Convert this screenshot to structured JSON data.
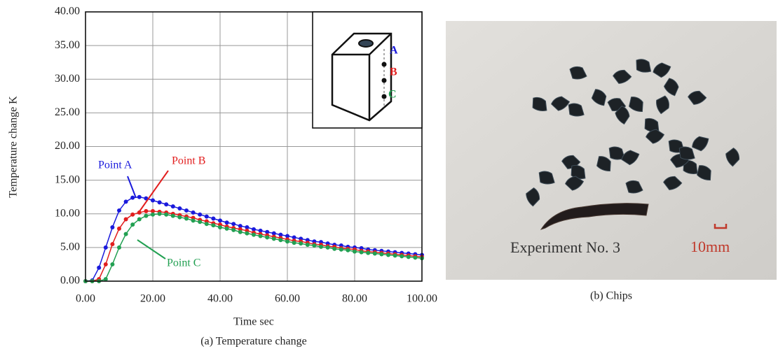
{
  "chart_data": {
    "type": "line",
    "y_label": "Temperature change K",
    "x_label": "Time sec",
    "caption": "(a) Temperature change",
    "x": [
      0,
      2,
      4,
      6,
      8,
      10,
      12,
      14,
      16,
      18,
      20,
      22,
      24,
      26,
      28,
      30,
      32,
      34,
      36,
      38,
      40,
      42,
      44,
      46,
      48,
      50,
      52,
      54,
      56,
      58,
      60,
      62,
      64,
      66,
      68,
      70,
      72,
      74,
      76,
      78,
      80,
      82,
      84,
      86,
      88,
      90,
      92,
      94,
      96,
      98,
      100
    ],
    "series": [
      {
        "name": "Point A",
        "color": "#1a1adc",
        "values": [
          0,
          0.1,
          2.0,
          5.0,
          8.0,
          10.5,
          11.8,
          12.4,
          12.5,
          12.3,
          12.0,
          11.7,
          11.4,
          11.1,
          10.8,
          10.5,
          10.2,
          9.9,
          9.6,
          9.3,
          9.0,
          8.7,
          8.5,
          8.2,
          8.0,
          7.7,
          7.5,
          7.3,
          7.1,
          6.9,
          6.7,
          6.5,
          6.3,
          6.1,
          5.9,
          5.8,
          5.6,
          5.4,
          5.3,
          5.1,
          5.0,
          4.9,
          4.7,
          4.6,
          4.5,
          4.4,
          4.3,
          4.2,
          4.1,
          4.0,
          3.9
        ]
      },
      {
        "name": "Point B",
        "color": "#e21e1e",
        "values": [
          0,
          0,
          0.3,
          2.5,
          5.5,
          7.8,
          9.2,
          9.9,
          10.2,
          10.4,
          10.4,
          10.3,
          10.2,
          10.0,
          9.8,
          9.6,
          9.4,
          9.1,
          8.9,
          8.6,
          8.4,
          8.1,
          7.9,
          7.7,
          7.5,
          7.2,
          7.0,
          6.8,
          6.6,
          6.4,
          6.2,
          6.0,
          5.9,
          5.7,
          5.5,
          5.4,
          5.2,
          5.1,
          4.9,
          4.8,
          4.7,
          4.5,
          4.4,
          4.3,
          4.2,
          4.1,
          4.0,
          3.9,
          3.8,
          3.7,
          3.6
        ]
      },
      {
        "name": "Point C",
        "color": "#22a052",
        "values": [
          0,
          0,
          0,
          0.3,
          2.5,
          5.0,
          7.0,
          8.4,
          9.2,
          9.7,
          9.9,
          10.0,
          9.9,
          9.7,
          9.5,
          9.3,
          9.0,
          8.8,
          8.5,
          8.3,
          8.0,
          7.8,
          7.6,
          7.3,
          7.1,
          6.9,
          6.7,
          6.5,
          6.3,
          6.1,
          5.9,
          5.7,
          5.6,
          5.4,
          5.3,
          5.1,
          5.0,
          4.8,
          4.7,
          4.6,
          4.4,
          4.3,
          4.2,
          4.1,
          4.0,
          3.9,
          3.8,
          3.7,
          3.6,
          3.5,
          3.4
        ]
      }
    ],
    "xlim": [
      0,
      100
    ],
    "ylim": [
      0,
      40
    ],
    "xticks": [
      {
        "value": 0,
        "label": "0.00"
      },
      {
        "value": 20,
        "label": "20.00"
      },
      {
        "value": 40,
        "label": "40.00"
      },
      {
        "value": 60,
        "label": "60.00"
      },
      {
        "value": 80,
        "label": "80.00"
      },
      {
        "value": 100,
        "label": "100.00"
      }
    ],
    "yticks": [
      {
        "value": 0,
        "label": "0.00"
      },
      {
        "value": 5,
        "label": "5.00"
      },
      {
        "value": 10,
        "label": "10.00"
      },
      {
        "value": 15,
        "label": "15.00"
      },
      {
        "value": 20,
        "label": "20.00"
      },
      {
        "value": 25,
        "label": "25.00"
      },
      {
        "value": 30,
        "label": "30.00"
      },
      {
        "value": 35,
        "label": "35.00"
      },
      {
        "value": 40,
        "label": "40.00"
      }
    ],
    "grid": true,
    "inset_labels": [
      "A",
      "B",
      "C"
    ]
  },
  "photo": {
    "label": "Experiment No. 3",
    "scale_label": "10mm",
    "caption": "(b) Chips"
  }
}
